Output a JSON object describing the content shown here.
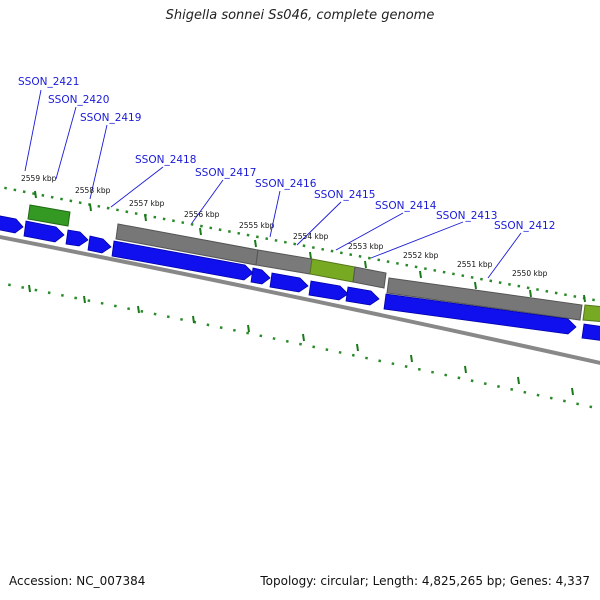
{
  "title": "Shigella sonnei Ss046, complete genome",
  "footer": {
    "accession": "Accession: NC_007384",
    "summary": "Topology: circular; Length: 4,825,265 bp; Genes: 4,337"
  },
  "colors": {
    "forward_gene": "#1010ee",
    "pseudogene": "#777777",
    "rna": "#339922",
    "rna_alt": "#77aa22",
    "label": "#1a1ad8",
    "tick": "#1a7a1a",
    "backbone": "#888888"
  },
  "tick_labels": [
    "2559 kbp",
    "2558 kbp",
    "2557 kbp",
    "2556 kbp",
    "2555 kbp",
    "2554 kbp",
    "2553 kbp",
    "2552 kbp",
    "2551 kbp",
    "2550 kbp"
  ],
  "gene_labels": [
    "SSON_2421",
    "SSON_2420",
    "SSON_2419",
    "SSON_2418",
    "SSON_2417",
    "SSON_2416",
    "SSON_2415",
    "SSON_2414",
    "SSON_2413",
    "SSON_2412"
  ]
}
